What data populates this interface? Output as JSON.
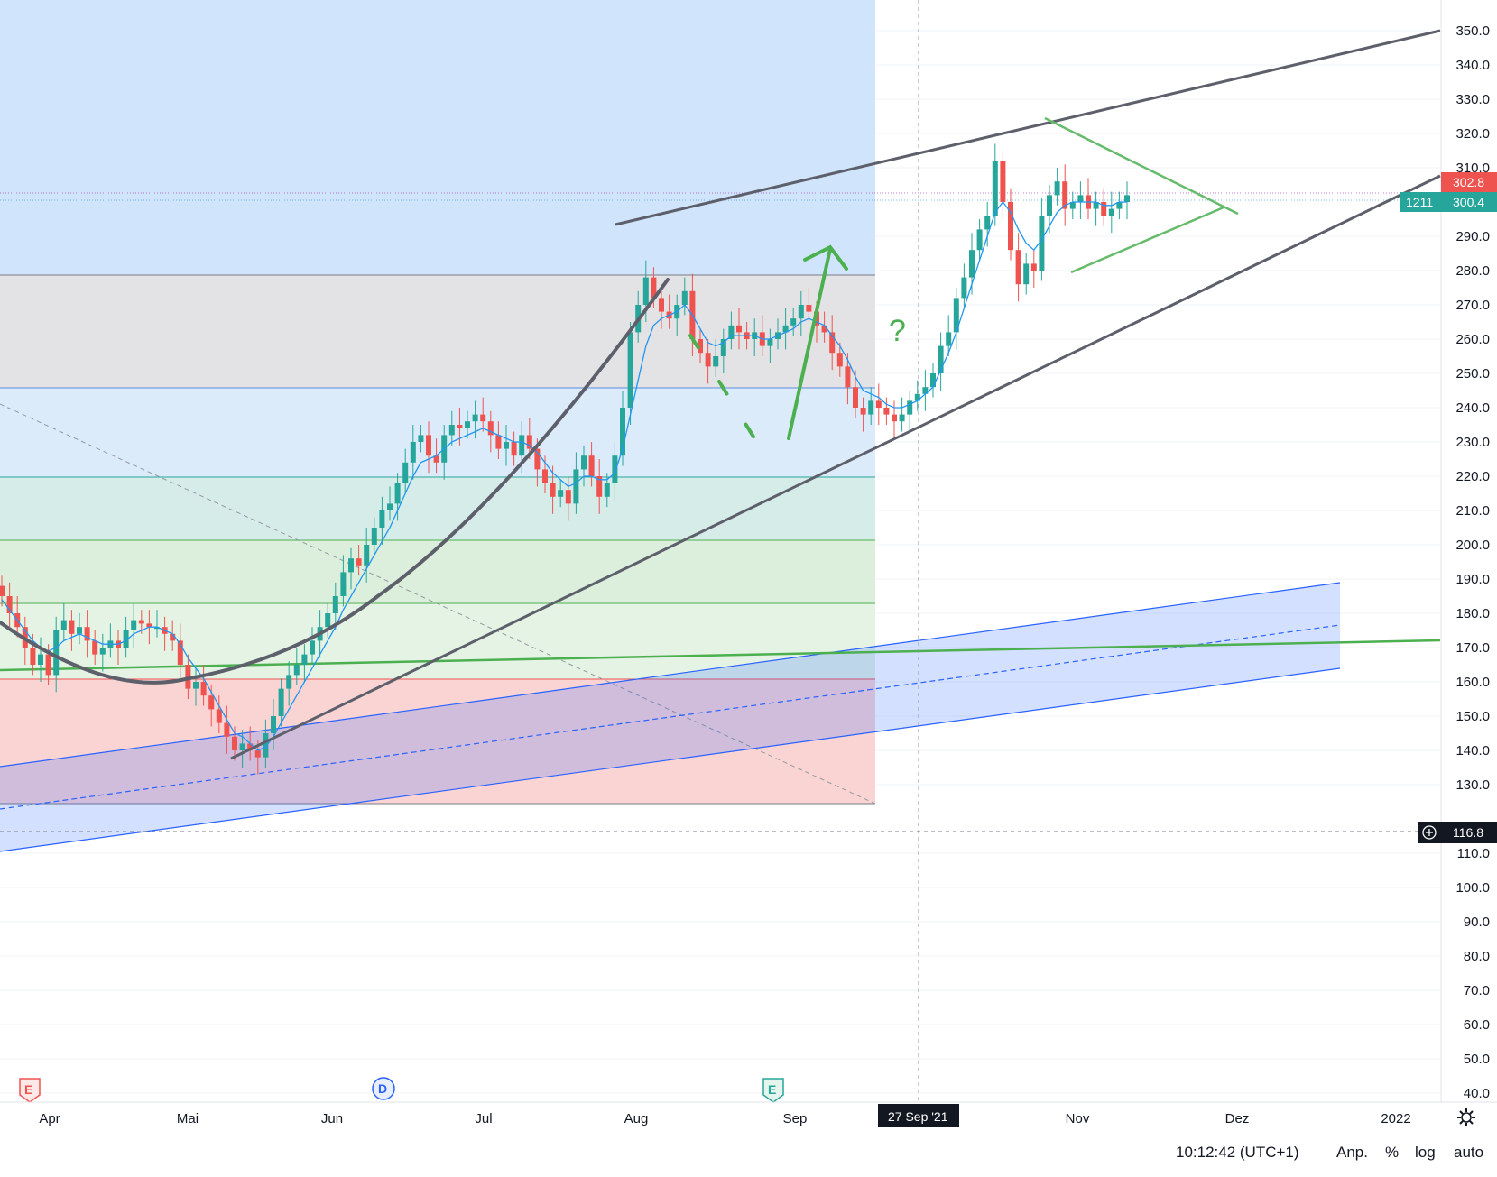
{
  "chart_data": {
    "type": "candlestick",
    "y_axis": {
      "ticks": [
        "350.0",
        "340.0",
        "330.0",
        "320.0",
        "310.0",
        "290.0",
        "280.0",
        "270.0",
        "260.0",
        "250.0",
        "240.0",
        "230.0",
        "220.0",
        "210.0",
        "200.0",
        "190.0",
        "180.0",
        "170.0",
        "160.0",
        "150.0",
        "140.0",
        "130.0",
        "110.0",
        "100.0",
        "90.0",
        "80.0",
        "70.0",
        "60.0",
        "50.0",
        "40.0"
      ],
      "ylim": [
        36,
        358
      ]
    },
    "x_axis": {
      "ticks": [
        "Apr",
        "Mai",
        "Jun",
        "Jul",
        "Aug",
        "Sep",
        "Nov",
        "Dez",
        "2022"
      ],
      "crosshair_label": "27 Sep '21"
    },
    "price_labels": {
      "last_price": "302.8",
      "ma_value": "300.4",
      "countdown": "1211",
      "crosshair_price": "116.8"
    },
    "candles_close": [
      185,
      180,
      176,
      170,
      165,
      168,
      162,
      175,
      178,
      174,
      176,
      172,
      168,
      170,
      172,
      170,
      175,
      178,
      177,
      176,
      176,
      174,
      172,
      165,
      158,
      160,
      156,
      152,
      148,
      144,
      140,
      142,
      140,
      138,
      145,
      150,
      158,
      162,
      165,
      168,
      172,
      176,
      180,
      185,
      192,
      196,
      194,
      200,
      205,
      210,
      212,
      218,
      224,
      230,
      232,
      226,
      224,
      232,
      235,
      234,
      236,
      238,
      236,
      232,
      228,
      230,
      226,
      232,
      228,
      222,
      218,
      214,
      216,
      212,
      222,
      226,
      220,
      214,
      218,
      226,
      240,
      262,
      270,
      278,
      272,
      268,
      266,
      270,
      274,
      260,
      256,
      252,
      255,
      260,
      264,
      262,
      260,
      262,
      258,
      260,
      262,
      264,
      266,
      270,
      268,
      264,
      262,
      256,
      252,
      246,
      240,
      238,
      242,
      240,
      238,
      236,
      238,
      242,
      244,
      246,
      250,
      258,
      262,
      272,
      278,
      286,
      292,
      296,
      312,
      300,
      286,
      276,
      282,
      280,
      296,
      302,
      306,
      298,
      300,
      302,
      298,
      300,
      296,
      298,
      300,
      302
    ],
    "ma_values": [
      184,
      181,
      178,
      175,
      172,
      170,
      169,
      170,
      172,
      173,
      174,
      173,
      172,
      171,
      171,
      171,
      172,
      174,
      175,
      176,
      176,
      175,
      174,
      171,
      167,
      164,
      161,
      157,
      153,
      149,
      145,
      144,
      142,
      140,
      141,
      144,
      148,
      152,
      156,
      160,
      164,
      168,
      172,
      176,
      181,
      185,
      189,
      193,
      197,
      201,
      205,
      210,
      215,
      220,
      224,
      225,
      226,
      228,
      230,
      231,
      232,
      233,
      234,
      233,
      232,
      231,
      230,
      230,
      229,
      227,
      224,
      221,
      219,
      217,
      218,
      220,
      220,
      219,
      219,
      221,
      228,
      238,
      248,
      258,
      264,
      266,
      267,
      268,
      270,
      267,
      263,
      259,
      258,
      259,
      261,
      261,
      261,
      261,
      260,
      260,
      261,
      262,
      263,
      265,
      266,
      265,
      264,
      261,
      258,
      254,
      249,
      245,
      244,
      243,
      241,
      240,
      240,
      241,
      242,
      244,
      246,
      251,
      256,
      262,
      269,
      276,
      283,
      290,
      297,
      300,
      297,
      292,
      288,
      286,
      289,
      293,
      297,
      299,
      300,
      300,
      300,
      300,
      299,
      299,
      300,
      300
    ]
  },
  "bottom_bar": {
    "time": "10:12:42 (UTC+1)",
    "adjust": "Anp.",
    "percent": "%",
    "log": "log",
    "auto": "auto"
  },
  "annotations": {
    "question_mark": "?",
    "event_earnings_1": "E",
    "event_dividend": "D",
    "event_earnings_2": "E"
  },
  "colors": {
    "up": "#26a69a",
    "down": "#ef5350",
    "ma": "#2196f3",
    "trend": "#5d606b",
    "annotation_green": "#4caf50"
  }
}
